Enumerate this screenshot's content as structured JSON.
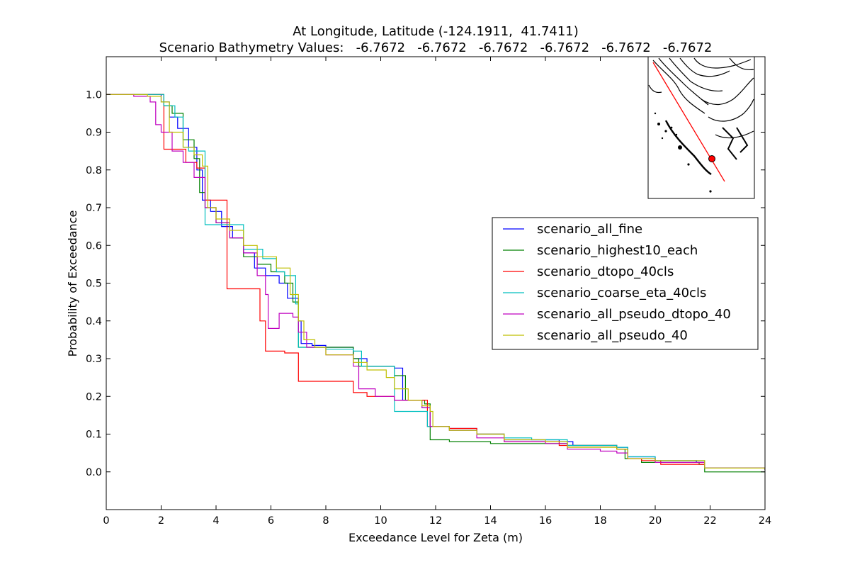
{
  "chart_data": {
    "type": "line",
    "title_line1": "At Longitude, Latitude (-124.1911,  41.7411)",
    "title_line2": "Scenario Bathymetry Values:   -6.7672   -6.7672   -6.7672   -6.7672   -6.7672   -6.7672",
    "xlabel": "Exceedance Level for Zeta (m)",
    "ylabel": "Probability of Exceedance",
    "xlim": [
      0,
      24
    ],
    "ylim": [
      -0.1,
      1.1
    ],
    "xticks": [
      "0",
      "2",
      "4",
      "6",
      "8",
      "10",
      "12",
      "14",
      "16",
      "18",
      "20",
      "22",
      "24"
    ],
    "yticks": [
      "0.0",
      "0.1",
      "0.2",
      "0.3",
      "0.4",
      "0.5",
      "0.6",
      "0.7",
      "0.8",
      "0.9",
      "1.0"
    ],
    "grid": false,
    "legend_position": "center-right",
    "series": [
      {
        "name": "scenario_all_fine",
        "color": "#0000ff",
        "points": [
          [
            0,
            1.0
          ],
          [
            1.5,
            1.0
          ],
          [
            2.0,
            0.98
          ],
          [
            2.3,
            0.94
          ],
          [
            2.6,
            0.91
          ],
          [
            3.0,
            0.86
          ],
          [
            3.3,
            0.8
          ],
          [
            3.5,
            0.72
          ],
          [
            3.8,
            0.69
          ],
          [
            4.2,
            0.65
          ],
          [
            4.6,
            0.62
          ],
          [
            5.0,
            0.58
          ],
          [
            5.4,
            0.54
          ],
          [
            5.8,
            0.52
          ],
          [
            6.3,
            0.5
          ],
          [
            6.6,
            0.46
          ],
          [
            7.0,
            0.4
          ],
          [
            7.1,
            0.34
          ],
          [
            7.5,
            0.335
          ],
          [
            8.0,
            0.33
          ],
          [
            9.0,
            0.3
          ],
          [
            9.5,
            0.28
          ],
          [
            10.5,
            0.275
          ],
          [
            10.8,
            0.19
          ],
          [
            11.5,
            0.17
          ],
          [
            11.8,
            0.12
          ],
          [
            12.5,
            0.115
          ],
          [
            13.5,
            0.1
          ],
          [
            14.5,
            0.085
          ],
          [
            16.5,
            0.08
          ],
          [
            17.0,
            0.07
          ],
          [
            18.6,
            0.065
          ],
          [
            19.0,
            0.04
          ],
          [
            20.0,
            0.03
          ],
          [
            21.5,
            0.025
          ],
          [
            21.8,
            0.01
          ],
          [
            24.0,
            0.005
          ]
        ]
      },
      {
        "name": "scenario_highest10_each",
        "color": "#008000",
        "points": [
          [
            0,
            1.0
          ],
          [
            2.0,
            1.0
          ],
          [
            2.1,
            0.97
          ],
          [
            2.4,
            0.95
          ],
          [
            2.8,
            0.88
          ],
          [
            3.2,
            0.83
          ],
          [
            3.4,
            0.74
          ],
          [
            3.6,
            0.7
          ],
          [
            4.0,
            0.66
          ],
          [
            4.5,
            0.62
          ],
          [
            5.0,
            0.57
          ],
          [
            5.5,
            0.55
          ],
          [
            6.0,
            0.53
          ],
          [
            6.5,
            0.5
          ],
          [
            6.8,
            0.45
          ],
          [
            7.0,
            0.33
          ],
          [
            8.0,
            0.33
          ],
          [
            9.0,
            0.3
          ],
          [
            9.2,
            0.28
          ],
          [
            10.2,
            0.28
          ],
          [
            10.5,
            0.255
          ],
          [
            10.9,
            0.19
          ],
          [
            11.6,
            0.18
          ],
          [
            11.8,
            0.085
          ],
          [
            12.5,
            0.08
          ],
          [
            13.5,
            0.08
          ],
          [
            14.0,
            0.075
          ],
          [
            16.5,
            0.075
          ],
          [
            16.8,
            0.07
          ],
          [
            18.6,
            0.06
          ],
          [
            18.9,
            0.035
          ],
          [
            19.5,
            0.025
          ],
          [
            21.6,
            0.02
          ],
          [
            21.8,
            0.0
          ],
          [
            24.0,
            0.0
          ]
        ]
      },
      {
        "name": "scenario_dtopo_40cls",
        "color": "#ff0000",
        "points": [
          [
            0,
            1.0
          ],
          [
            2.0,
            1.0
          ],
          [
            2.1,
            0.855
          ],
          [
            2.6,
            0.855
          ],
          [
            2.9,
            0.82
          ],
          [
            3.3,
            0.805
          ],
          [
            3.6,
            0.72
          ],
          [
            4.3,
            0.72
          ],
          [
            4.4,
            0.485
          ],
          [
            5.5,
            0.485
          ],
          [
            5.6,
            0.4
          ],
          [
            5.8,
            0.32
          ],
          [
            6.3,
            0.32
          ],
          [
            6.5,
            0.315
          ],
          [
            7.0,
            0.24
          ],
          [
            8.5,
            0.24
          ],
          [
            9.0,
            0.21
          ],
          [
            9.5,
            0.2
          ],
          [
            10.5,
            0.19
          ],
          [
            11.5,
            0.19
          ],
          [
            11.7,
            0.12
          ],
          [
            12.5,
            0.115
          ],
          [
            13.5,
            0.1
          ],
          [
            14.5,
            0.08
          ],
          [
            16.0,
            0.08
          ],
          [
            16.5,
            0.07
          ],
          [
            18.6,
            0.06
          ],
          [
            19.0,
            0.035
          ],
          [
            19.5,
            0.03
          ],
          [
            20.2,
            0.02
          ],
          [
            21.8,
            0.01
          ],
          [
            24.0,
            0.005
          ]
        ]
      },
      {
        "name": "scenario_coarse_eta_40cls",
        "color": "#00bfbf",
        "points": [
          [
            0,
            1.0
          ],
          [
            1.8,
            1.0
          ],
          [
            2.1,
            0.97
          ],
          [
            2.5,
            0.94
          ],
          [
            2.8,
            0.86
          ],
          [
            3.0,
            0.85
          ],
          [
            3.5,
            0.85
          ],
          [
            3.6,
            0.655
          ],
          [
            4.3,
            0.655
          ],
          [
            4.5,
            0.655
          ],
          [
            5.0,
            0.59
          ],
          [
            5.7,
            0.565
          ],
          [
            6.2,
            0.53
          ],
          [
            6.5,
            0.52
          ],
          [
            6.9,
            0.445
          ],
          [
            7.0,
            0.33
          ],
          [
            8.0,
            0.325
          ],
          [
            9.0,
            0.32
          ],
          [
            9.3,
            0.28
          ],
          [
            10.3,
            0.28
          ],
          [
            10.5,
            0.16
          ],
          [
            11.5,
            0.16
          ],
          [
            11.7,
            0.12
          ],
          [
            12.5,
            0.11
          ],
          [
            13.5,
            0.1
          ],
          [
            14.5,
            0.09
          ],
          [
            15.5,
            0.085
          ],
          [
            16.5,
            0.085
          ],
          [
            16.8,
            0.07
          ],
          [
            17.5,
            0.07
          ],
          [
            18.6,
            0.065
          ],
          [
            19.0,
            0.04
          ],
          [
            20.0,
            0.03
          ],
          [
            21.8,
            0.01
          ],
          [
            24.0,
            0.005
          ]
        ]
      },
      {
        "name": "scenario_all_pseudo_dtopo_40",
        "color": "#bf00bf",
        "points": [
          [
            0,
            1.0
          ],
          [
            1.0,
            0.995
          ],
          [
            1.6,
            0.98
          ],
          [
            1.8,
            0.92
          ],
          [
            2.0,
            0.9
          ],
          [
            2.4,
            0.85
          ],
          [
            2.8,
            0.82
          ],
          [
            3.2,
            0.78
          ],
          [
            3.6,
            0.7
          ],
          [
            4.0,
            0.66
          ],
          [
            4.5,
            0.62
          ],
          [
            5.0,
            0.58
          ],
          [
            5.5,
            0.52
          ],
          [
            5.8,
            0.47
          ],
          [
            5.9,
            0.38
          ],
          [
            6.3,
            0.42
          ],
          [
            6.8,
            0.41
          ],
          [
            7.0,
            0.37
          ],
          [
            7.3,
            0.33
          ],
          [
            8.0,
            0.31
          ],
          [
            9.0,
            0.28
          ],
          [
            9.2,
            0.22
          ],
          [
            9.8,
            0.2
          ],
          [
            10.5,
            0.19
          ],
          [
            11.5,
            0.17
          ],
          [
            11.8,
            0.12
          ],
          [
            12.5,
            0.11
          ],
          [
            13.5,
            0.09
          ],
          [
            14.5,
            0.08
          ],
          [
            16.0,
            0.075
          ],
          [
            16.8,
            0.06
          ],
          [
            18.0,
            0.055
          ],
          [
            18.6,
            0.05
          ],
          [
            19.0,
            0.035
          ],
          [
            20.0,
            0.025
          ],
          [
            21.8,
            0.01
          ],
          [
            24.0,
            0.005
          ]
        ]
      },
      {
        "name": "scenario_all_pseudo_40",
        "color": "#bfbf00",
        "points": [
          [
            0,
            1.0
          ],
          [
            1.5,
            0.995
          ],
          [
            2.0,
            0.98
          ],
          [
            2.3,
            0.9
          ],
          [
            2.8,
            0.86
          ],
          [
            3.2,
            0.84
          ],
          [
            3.5,
            0.81
          ],
          [
            3.7,
            0.7
          ],
          [
            4.0,
            0.67
          ],
          [
            4.5,
            0.64
          ],
          [
            5.0,
            0.6
          ],
          [
            5.5,
            0.57
          ],
          [
            6.2,
            0.54
          ],
          [
            6.7,
            0.47
          ],
          [
            7.0,
            0.4
          ],
          [
            7.2,
            0.35
          ],
          [
            7.6,
            0.33
          ],
          [
            8.0,
            0.31
          ],
          [
            9.0,
            0.29
          ],
          [
            9.5,
            0.27
          ],
          [
            10.2,
            0.25
          ],
          [
            10.5,
            0.22
          ],
          [
            11.0,
            0.19
          ],
          [
            11.5,
            0.175
          ],
          [
            11.8,
            0.16
          ],
          [
            11.9,
            0.12
          ],
          [
            12.5,
            0.11
          ],
          [
            13.5,
            0.1
          ],
          [
            14.5,
            0.085
          ],
          [
            16.0,
            0.08
          ],
          [
            16.8,
            0.065
          ],
          [
            18.6,
            0.06
          ],
          [
            19.0,
            0.035
          ],
          [
            20.0,
            0.03
          ],
          [
            21.8,
            0.01
          ],
          [
            24.0,
            0.005
          ]
        ]
      }
    ],
    "inset_map": {
      "marker_color": "#ff0000",
      "line_color": "#ff0000"
    }
  }
}
